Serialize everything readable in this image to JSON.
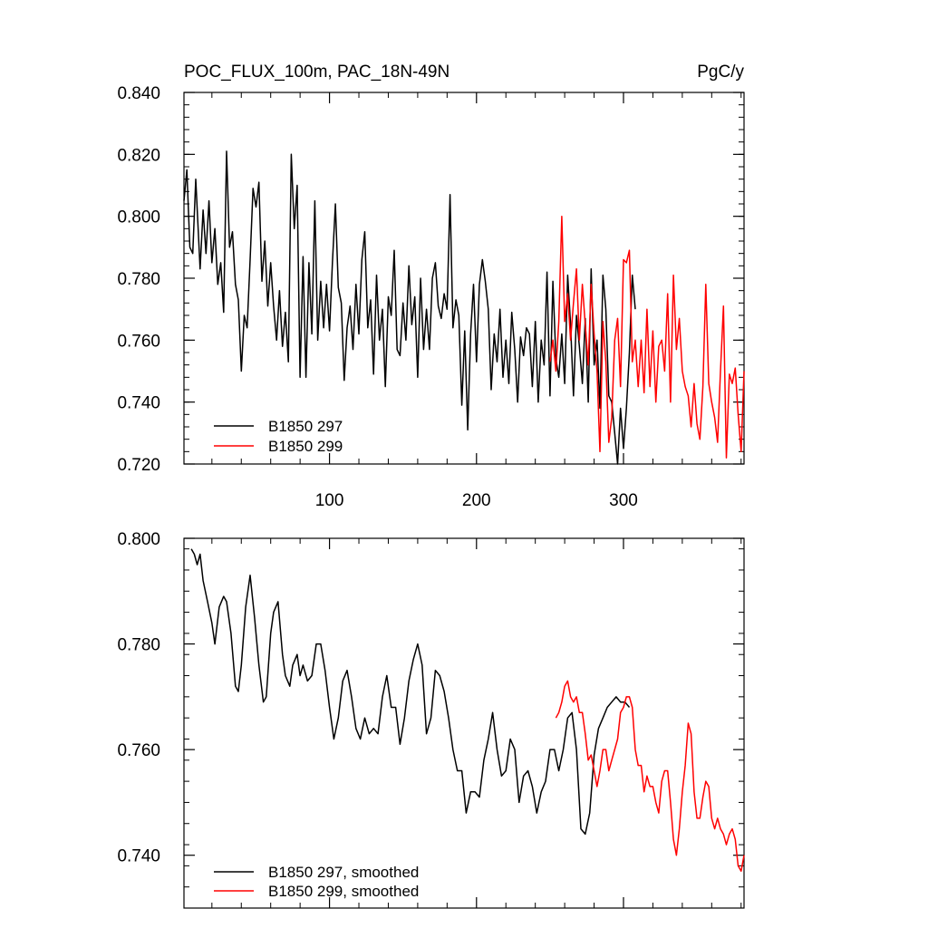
{
  "chart_data": [
    {
      "type": "line",
      "title": "POC_FLUX_100m, PAC_18N-49N",
      "units": "PgC/y",
      "xlim": [
        1,
        382
      ],
      "ylim": [
        0.72,
        0.84
      ],
      "x_ticks": [
        100,
        200,
        300
      ],
      "x_tick_labels": [
        "100",
        "200",
        "300"
      ],
      "y_ticks": [
        0.72,
        0.74,
        0.76,
        0.78,
        0.8,
        0.82,
        0.84
      ],
      "y_tick_labels": [
        "0.720",
        "0.740",
        "0.760",
        "0.780",
        "0.800",
        "0.820",
        "0.840"
      ],
      "legend_position": "bottom-left",
      "series": [
        {
          "name": "B1850 297",
          "color": "#000000",
          "x": [
            1,
            3,
            5,
            7,
            9,
            12,
            14,
            16,
            18,
            20,
            22,
            24,
            26,
            28,
            30,
            32,
            34,
            36,
            38,
            40,
            42,
            44,
            46,
            48,
            50,
            52,
            54,
            56,
            58,
            60,
            62,
            64,
            66,
            68,
            70,
            72,
            74,
            76,
            78,
            80,
            82,
            84,
            86,
            88,
            90,
            92,
            94,
            96,
            98,
            100,
            102,
            104,
            106,
            108,
            110,
            112,
            114,
            116,
            118,
            120,
            122,
            124,
            126,
            128,
            130,
            132,
            134,
            136,
            138,
            140,
            142,
            144,
            146,
            148,
            150,
            152,
            154,
            156,
            158,
            160,
            162,
            164,
            166,
            168,
            170,
            172,
            174,
            176,
            178,
            180,
            182,
            184,
            186,
            188,
            190,
            192,
            194,
            196,
            198,
            200,
            202,
            204,
            206,
            208,
            210,
            212,
            214,
            216,
            218,
            220,
            222,
            224,
            226,
            228,
            230,
            232,
            234,
            236,
            238,
            240,
            242,
            244,
            246,
            248,
            250,
            252,
            254,
            256,
            258,
            260,
            262,
            264,
            266,
            268,
            270,
            272,
            274,
            276,
            278,
            280,
            282,
            284,
            286,
            288,
            290,
            292,
            294,
            296,
            298,
            300,
            302,
            304,
            306,
            308
          ],
          "values": [
            0.805,
            0.815,
            0.79,
            0.788,
            0.812,
            0.783,
            0.802,
            0.788,
            0.805,
            0.785,
            0.796,
            0.778,
            0.785,
            0.769,
            0.821,
            0.79,
            0.795,
            0.778,
            0.773,
            0.75,
            0.768,
            0.764,
            0.786,
            0.809,
            0.803,
            0.811,
            0.779,
            0.792,
            0.771,
            0.785,
            0.771,
            0.76,
            0.776,
            0.758,
            0.769,
            0.753,
            0.82,
            0.796,
            0.81,
            0.748,
            0.787,
            0.748,
            0.785,
            0.762,
            0.805,
            0.76,
            0.779,
            0.764,
            0.778,
            0.763,
            0.785,
            0.804,
            0.777,
            0.772,
            0.747,
            0.764,
            0.771,
            0.757,
            0.778,
            0.762,
            0.786,
            0.795,
            0.764,
            0.773,
            0.749,
            0.781,
            0.76,
            0.77,
            0.745,
            0.774,
            0.768,
            0.789,
            0.757,
            0.755,
            0.772,
            0.76,
            0.784,
            0.765,
            0.774,
            0.748,
            0.78,
            0.757,
            0.77,
            0.757,
            0.78,
            0.785,
            0.771,
            0.767,
            0.775,
            0.77,
            0.807,
            0.764,
            0.773,
            0.768,
            0.739,
            0.763,
            0.731,
            0.762,
            0.778,
            0.753,
            0.778,
            0.786,
            0.779,
            0.77,
            0.744,
            0.762,
            0.753,
            0.77,
            0.748,
            0.76,
            0.746,
            0.769,
            0.757,
            0.74,
            0.761,
            0.755,
            0.764,
            0.762,
            0.745,
            0.766,
            0.74,
            0.76,
            0.752,
            0.782,
            0.742,
            0.779,
            0.754,
            0.748,
            0.762,
            0.746,
            0.781,
            0.765,
            0.742,
            0.768,
            0.758,
            0.746,
            0.767,
            0.74,
            0.783,
            0.752,
            0.76,
            0.738,
            0.781,
            0.77,
            0.742,
            0.74,
            0.73,
            0.72,
            0.738,
            0.725,
            0.738,
            0.756,
            0.781,
            0.77
          ],
          "line_style": "solid"
        },
        {
          "name": "B1850 299",
          "color": "#ff0000",
          "x": [
            250,
            252,
            254,
            256,
            258,
            260,
            262,
            264,
            266,
            268,
            270,
            272,
            274,
            276,
            278,
            280,
            282,
            284,
            286,
            288,
            290,
            292,
            294,
            296,
            298,
            300,
            302,
            304,
            306,
            308,
            310,
            312,
            314,
            316,
            318,
            320,
            322,
            324,
            326,
            328,
            330,
            332,
            334,
            336,
            338,
            340,
            342,
            344,
            346,
            348,
            350,
            352,
            354,
            356,
            358,
            360,
            362,
            364,
            366,
            368,
            370,
            372,
            374,
            376,
            378,
            380,
            382
          ],
          "values": [
            0.753,
            0.76,
            0.75,
            0.766,
            0.8,
            0.766,
            0.775,
            0.76,
            0.772,
            0.783,
            0.76,
            0.778,
            0.765,
            0.752,
            0.778,
            0.762,
            0.75,
            0.724,
            0.766,
            0.753,
            0.727,
            0.735,
            0.76,
            0.767,
            0.745,
            0.786,
            0.785,
            0.789,
            0.753,
            0.76,
            0.745,
            0.76,
            0.743,
            0.77,
            0.745,
            0.763,
            0.74,
            0.758,
            0.76,
            0.75,
            0.775,
            0.74,
            0.781,
            0.757,
            0.767,
            0.75,
            0.745,
            0.742,
            0.732,
            0.746,
            0.733,
            0.728,
            0.745,
            0.778,
            0.746,
            0.74,
            0.735,
            0.727,
            0.75,
            0.771,
            0.722,
            0.749,
            0.746,
            0.751,
            0.736,
            0.724,
            0.75
          ],
          "line_style": "solid"
        }
      ]
    },
    {
      "type": "line",
      "title": "",
      "xlim": [
        1,
        382
      ],
      "ylim": [
        0.73,
        0.8
      ],
      "x_ticks": [
        100,
        200,
        300
      ],
      "x_tick_labels": [],
      "y_ticks": [
        0.74,
        0.76,
        0.78,
        0.8
      ],
      "y_tick_labels": [
        "0.740",
        "0.760",
        "0.780",
        "0.800"
      ],
      "legend_position": "bottom-left",
      "series": [
        {
          "name": "B1850 297, smoothed",
          "color": "#000000",
          "x": [
            6,
            8,
            10,
            12,
            14,
            17,
            20,
            22,
            25,
            28,
            30,
            33,
            36,
            38,
            40,
            43,
            46,
            49,
            52,
            55,
            57,
            60,
            62,
            65,
            68,
            70,
            73,
            75,
            78,
            80,
            82,
            85,
            88,
            91,
            94,
            97,
            100,
            103,
            106,
            109,
            112,
            115,
            118,
            121,
            124,
            127,
            130,
            133,
            136,
            139,
            142,
            145,
            148,
            151,
            154,
            157,
            160,
            163,
            166,
            169,
            172,
            175,
            178,
            181,
            184,
            187,
            190,
            193,
            196,
            199,
            202,
            205,
            208,
            211,
            214,
            217,
            220,
            223,
            226,
            229,
            232,
            235,
            238,
            241,
            244,
            247,
            250,
            253,
            256,
            259,
            262,
            265,
            268,
            271,
            274,
            277,
            280,
            283,
            286,
            289,
            292,
            295,
            298,
            301,
            304
          ],
          "values": [
            0.798,
            0.797,
            0.795,
            0.797,
            0.792,
            0.788,
            0.784,
            0.78,
            0.787,
            0.789,
            0.788,
            0.782,
            0.772,
            0.771,
            0.776,
            0.787,
            0.793,
            0.785,
            0.776,
            0.769,
            0.77,
            0.782,
            0.786,
            0.788,
            0.778,
            0.774,
            0.772,
            0.776,
            0.778,
            0.774,
            0.776,
            0.773,
            0.774,
            0.78,
            0.78,
            0.775,
            0.768,
            0.762,
            0.766,
            0.773,
            0.775,
            0.77,
            0.764,
            0.762,
            0.766,
            0.763,
            0.764,
            0.763,
            0.77,
            0.774,
            0.768,
            0.768,
            0.761,
            0.766,
            0.773,
            0.777,
            0.78,
            0.776,
            0.763,
            0.766,
            0.775,
            0.774,
            0.771,
            0.766,
            0.76,
            0.756,
            0.756,
            0.748,
            0.752,
            0.752,
            0.751,
            0.758,
            0.762,
            0.767,
            0.76,
            0.755,
            0.756,
            0.762,
            0.76,
            0.75,
            0.755,
            0.756,
            0.753,
            0.748,
            0.752,
            0.754,
            0.76,
            0.76,
            0.756,
            0.76,
            0.766,
            0.767,
            0.76,
            0.745,
            0.744,
            0.748,
            0.759,
            0.764,
            0.766,
            0.768,
            0.769,
            0.77,
            0.769,
            0.769,
            0.768
          ],
          "line_style": "solid"
        },
        {
          "name": "B1850 299, smoothed",
          "color": "#ff0000",
          "x": [
            254,
            256,
            258,
            260,
            262,
            264,
            266,
            268,
            270,
            272,
            274,
            276,
            278,
            280,
            282,
            284,
            286,
            288,
            290,
            292,
            294,
            296,
            298,
            300,
            302,
            304,
            306,
            308,
            310,
            312,
            314,
            316,
            318,
            320,
            322,
            324,
            326,
            328,
            330,
            332,
            334,
            336,
            338,
            340,
            342,
            344,
            346,
            348,
            350,
            352,
            354,
            356,
            358,
            360,
            362,
            364,
            366,
            368,
            370,
            372,
            374,
            376,
            378,
            380,
            382
          ],
          "values": [
            0.766,
            0.767,
            0.769,
            0.772,
            0.773,
            0.77,
            0.769,
            0.77,
            0.767,
            0.767,
            0.763,
            0.758,
            0.759,
            0.756,
            0.753,
            0.756,
            0.76,
            0.76,
            0.756,
            0.758,
            0.76,
            0.762,
            0.767,
            0.768,
            0.77,
            0.77,
            0.768,
            0.76,
            0.757,
            0.757,
            0.752,
            0.755,
            0.753,
            0.753,
            0.75,
            0.748,
            0.754,
            0.756,
            0.756,
            0.75,
            0.743,
            0.74,
            0.745,
            0.752,
            0.757,
            0.765,
            0.763,
            0.752,
            0.747,
            0.747,
            0.751,
            0.754,
            0.753,
            0.747,
            0.745,
            0.747,
            0.745,
            0.744,
            0.742,
            0.744,
            0.745,
            0.743,
            0.738,
            0.737,
            0.74
          ],
          "line_style": "solid"
        }
      ]
    }
  ]
}
